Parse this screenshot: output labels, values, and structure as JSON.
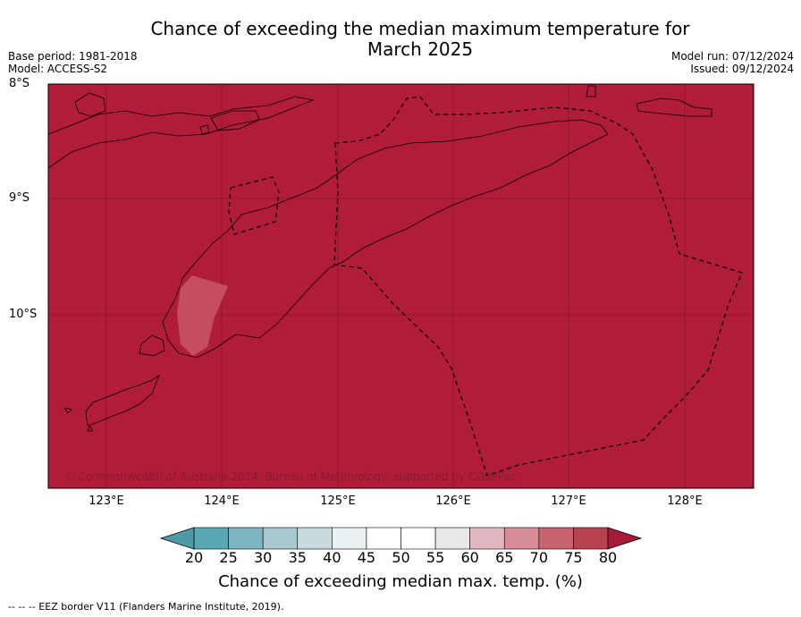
{
  "title_line1": "Chance of exceeding the median maximum temperature for",
  "title_line2": "March 2025",
  "meta_left": [
    "Base period: 1981-2018",
    "Model: ACCESS-S2"
  ],
  "meta_right": [
    "Model run: 07/12/2024",
    "Issued: 09/12/2024"
  ],
  "map": {
    "latitude_labels": [
      "8°S",
      "9°S",
      "10°S"
    ],
    "longitude_labels": [
      "123°E",
      "124°E",
      "125°E",
      "126°E",
      "127°E",
      "128°E"
    ],
    "fill_color": "#b11d39",
    "copyright": "© Commonwealth of Australia 2024, Bureau of Meteorology, supported by COSPPac"
  },
  "colorbar": {
    "ticks": [
      "20",
      "25",
      "30",
      "35",
      "40",
      "45",
      "50",
      "55",
      "60",
      "65",
      "70",
      "75",
      "80"
    ],
    "colors": [
      "#5aa7b5",
      "#7db6c3",
      "#a7c9cf",
      "#c8dade",
      "#e9f1f2",
      "#ffffff",
      "#ffffff",
      "#e8e8e8",
      "#e2b7bf",
      "#d78c97",
      "#c9646f",
      "#b8424f"
    ],
    "min_extend_color": "#4f9aa8",
    "max_extend_color": "#a81a37",
    "label": "Chance of exceeding median max. temp. (%)"
  },
  "footer": "--  --  -- EEZ border V11 (Flanders Marine Institute, 2019)."
}
